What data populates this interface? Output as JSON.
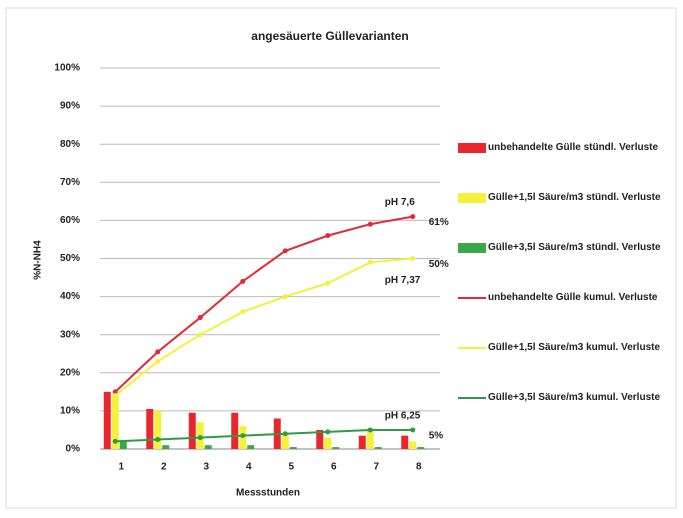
{
  "chart_data": {
    "type": "bar+line",
    "title": "angesäuerte Güllevarianten",
    "xlabel": "Messstunden",
    "ylabel": "%N-NH4",
    "categories": [
      "1",
      "2",
      "3",
      "4",
      "5",
      "6",
      "7",
      "8"
    ],
    "ylim": [
      0,
      100
    ],
    "yticks": [
      {
        "value": 0,
        "label": "0%"
      },
      {
        "value": 10,
        "label": "10%"
      },
      {
        "value": 20,
        "label": "20%"
      },
      {
        "value": 30,
        "label": "30%"
      },
      {
        "value": 40,
        "label": "40%"
      },
      {
        "value": 50,
        "label": "50%"
      },
      {
        "value": 60,
        "label": "60%"
      },
      {
        "value": 70,
        "label": "70%"
      },
      {
        "value": 80,
        "label": "80%"
      },
      {
        "value": 90,
        "label": "90%"
      },
      {
        "value": 100,
        "label": "100%"
      }
    ],
    "grid": true,
    "series": [
      {
        "name": "unbehandelte Gülle stündl. Verluste",
        "kind": "bar",
        "color": "#e8262b",
        "values": [
          15,
          10.5,
          9.5,
          9.5,
          8,
          5,
          3.5,
          3.5
        ]
      },
      {
        "name": "Gülle+1,5l Säure/m3 stündl. Verluste",
        "kind": "bar",
        "color": "#f5f03c",
        "values": [
          14,
          10,
          7,
          6,
          4,
          3,
          5,
          2
        ]
      },
      {
        "name": "Gülle+3,5l Säure/m3 stündl. Verluste",
        "kind": "bar",
        "color": "#3aa84a",
        "values": [
          2,
          1,
          1,
          1,
          0.5,
          0.5,
          0.5,
          0.5
        ]
      },
      {
        "name": "unbehandelte Gülle kumul. Verluste",
        "kind": "line",
        "color": "#e02a3a",
        "values": [
          15,
          25.5,
          34.5,
          44,
          52,
          56,
          59,
          61
        ],
        "value_labels": [
          null,
          null,
          null,
          null,
          null,
          null,
          null,
          "61%"
        ]
      },
      {
        "name": "Gülle+1,5l Säure/m3 kumul. Verluste",
        "kind": "line",
        "color": "#f5f03c",
        "values": [
          14,
          23,
          30,
          36,
          40,
          43.5,
          49,
          50
        ],
        "value_labels": [
          null,
          null,
          null,
          null,
          null,
          null,
          null,
          "50%"
        ]
      },
      {
        "name": "Gülle+3,5l Säure/m3 kumul. Verluste",
        "kind": "line",
        "color": "#2e9a45",
        "values": [
          2,
          2.5,
          3,
          3.5,
          4,
          4.5,
          5,
          5
        ],
        "value_labels": [
          null,
          null,
          null,
          null,
          null,
          null,
          null,
          "5%"
        ]
      }
    ],
    "annotations": [
      "pH 7,6",
      "pH 7,37",
      "pH 6,25"
    ]
  }
}
